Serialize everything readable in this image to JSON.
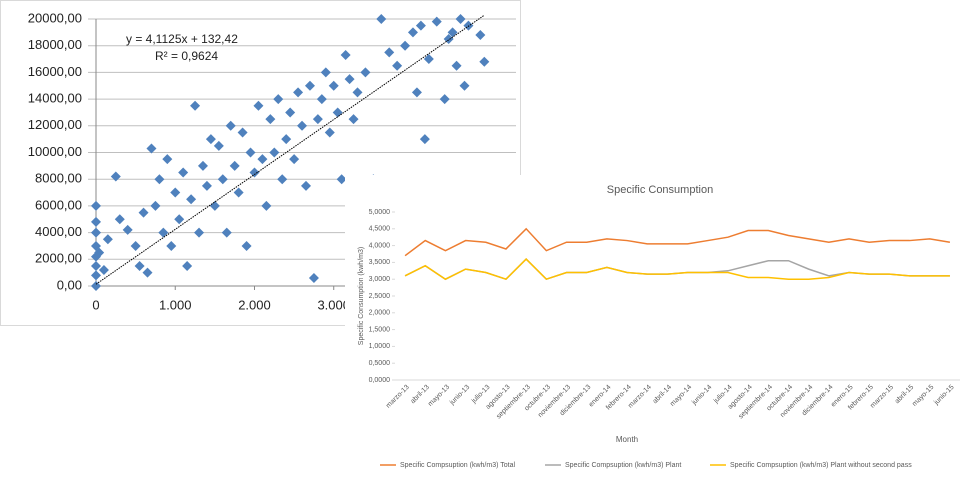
{
  "chart_data": [
    {
      "type": "scatter",
      "annotation": "y = 4,1125x + 132,42",
      "annotation2": "R² = 0,9624",
      "trend": {
        "slope": 4.1125,
        "intercept": 132.42
      },
      "color": "#4f81bd",
      "grid": true,
      "xlim": [
        0,
        5300
      ],
      "ylim": [
        0,
        20000
      ],
      "xticks": [
        0,
        {
          "value": 1000,
          "label": "1.000"
        },
        {
          "value": 2000,
          "label": "2.000"
        },
        {
          "value": 3000,
          "label": "3.000"
        }
      ],
      "yticks": [
        {
          "value": 0,
          "label": "0,00"
        },
        {
          "value": 2000,
          "label": "2000,00"
        },
        {
          "value": 4000,
          "label": "4000,00"
        },
        {
          "value": 6000,
          "label": "6000,00"
        },
        {
          "value": 8000,
          "label": "8000,00"
        },
        {
          "value": 10000,
          "label": "10000,00"
        },
        {
          "value": 12000,
          "label": "12000,00"
        },
        {
          "value": 14000,
          "label": "14000,00"
        },
        {
          "value": 16000,
          "label": "16000,00"
        },
        {
          "value": 18000,
          "label": "18000,00"
        },
        {
          "value": 20000,
          "label": "20000,00"
        }
      ],
      "x": [
        0,
        0,
        0,
        0,
        0,
        0,
        0,
        0,
        40,
        100,
        150,
        250,
        300,
        400,
        500,
        550,
        600,
        650,
        700,
        750,
        800,
        850,
        900,
        950,
        1000,
        1050,
        1100,
        1150,
        1200,
        1250,
        1300,
        1350,
        1400,
        1450,
        1500,
        1550,
        1600,
        1650,
        1700,
        1750,
        1800,
        1850,
        1900,
        1950,
        2000,
        2050,
        2100,
        2150,
        2200,
        2250,
        2300,
        2350,
        2400,
        2450,
        2500,
        2550,
        2600,
        2650,
        2700,
        2750,
        2800,
        2850,
        2900,
        2950,
        3000,
        3050,
        3100,
        3150,
        3200,
        3250,
        3300,
        3400,
        3450,
        3500,
        3600,
        3700,
        3800,
        3900,
        4000,
        4050,
        4100,
        4150,
        4200,
        4300,
        4400,
        4450,
        4500,
        4550,
        4600,
        4650,
        4700,
        4850,
        4900
      ],
      "values": [
        0,
        800,
        1500,
        2200,
        3000,
        4000,
        4800,
        6000,
        2500,
        1200,
        3500,
        8200,
        5000,
        4200,
        3000,
        1500,
        5500,
        1000,
        10300,
        6000,
        8000,
        4000,
        9500,
        3000,
        7000,
        5000,
        8500,
        1500,
        6500,
        13500,
        4000,
        9000,
        7500,
        11000,
        6000,
        10500,
        8000,
        4000,
        12000,
        9000,
        7000,
        11500,
        3000,
        10000,
        8500,
        13500,
        9500,
        6000,
        12500,
        10000,
        14000,
        8000,
        11000,
        13000,
        9500,
        14500,
        12000,
        7500,
        15000,
        600,
        12500,
        14000,
        16000,
        11500,
        15000,
        13000,
        8000,
        17300,
        15500,
        12500,
        14500,
        16000,
        0,
        8000,
        20000,
        17500,
        16500,
        18000,
        19000,
        14500,
        19500,
        11000,
        17000,
        19800,
        14000,
        18500,
        19000,
        16500,
        20000,
        15000,
        19500,
        18800,
        16800
      ]
    },
    {
      "type": "line",
      "title": "Specific Consumption",
      "x_label": "Month",
      "y_label": "Specific Consumption (kwh/m3)",
      "ylim": [
        0,
        5
      ],
      "yticks": [
        {
          "value": 0,
          "label": "0,0000"
        },
        {
          "value": 0.5,
          "label": "0,5000"
        },
        {
          "value": 1,
          "label": "1,0000"
        },
        {
          "value": 1.5,
          "label": "1,5000"
        },
        {
          "value": 2,
          "label": "2,0000"
        },
        {
          "value": 2.5,
          "label": "2,5000"
        },
        {
          "value": 3,
          "label": "3,0000"
        },
        {
          "value": 3.5,
          "label": "3,5000"
        },
        {
          "value": 4,
          "label": "4,0000"
        },
        {
          "value": 4.5,
          "label": "4,5000"
        },
        {
          "value": 5,
          "label": "5,0000"
        }
      ],
      "categories": [
        "marzo-13",
        "abril-13",
        "mayo-13",
        "junio-13",
        "julio-13",
        "agosto-13",
        "septiembre-13",
        "octubre-13",
        "noviembre-13",
        "diciembre-13",
        "enero-14",
        "febrero-14",
        "marzo-14",
        "abril-14",
        "mayo-14",
        "junio-14",
        "julio-14",
        "agosto-14",
        "septiembre-14",
        "octubre-14",
        "noviembre-14",
        "diciembre-14",
        "enero-15",
        "febrero-15",
        "marzo-15",
        "abril-15",
        "mayo-15",
        "junio-15"
      ],
      "series": [
        {
          "name": "Specific Compsuption (kwh/m3) Total",
          "color": "#ed7d31",
          "values": [
            3.7,
            4.15,
            3.85,
            4.15,
            4.1,
            3.9,
            4.5,
            3.85,
            4.1,
            4.1,
            4.2,
            4.15,
            4.05,
            4.05,
            4.05,
            4.15,
            4.25,
            4.45,
            4.45,
            4.3,
            4.2,
            4.1,
            4.2,
            4.1,
            4.15,
            4.15,
            4.2,
            4.1
          ]
        },
        {
          "name": "Specific Compsuption (kwh/m3) Plant",
          "color": "#a5a5a5",
          "values": [
            3.1,
            3.4,
            3.0,
            3.3,
            3.2,
            3.0,
            3.6,
            3.0,
            3.2,
            3.2,
            3.35,
            3.2,
            3.15,
            3.15,
            3.2,
            3.2,
            3.25,
            3.4,
            3.55,
            3.55,
            3.3,
            3.1,
            3.2,
            3.15,
            3.15,
            3.1,
            3.1,
            3.1
          ]
        },
        {
          "name": "Specific Compsuption (kwh/m3) Plant without second pass",
          "color": "#ffc000",
          "values": [
            3.1,
            3.4,
            3.0,
            3.3,
            3.2,
            3.0,
            3.6,
            3.0,
            3.2,
            3.2,
            3.35,
            3.2,
            3.15,
            3.15,
            3.2,
            3.2,
            3.2,
            3.05,
            3.05,
            3.0,
            3.0,
            3.05,
            3.2,
            3.15,
            3.15,
            3.1,
            3.1,
            3.1
          ]
        }
      ]
    }
  ]
}
